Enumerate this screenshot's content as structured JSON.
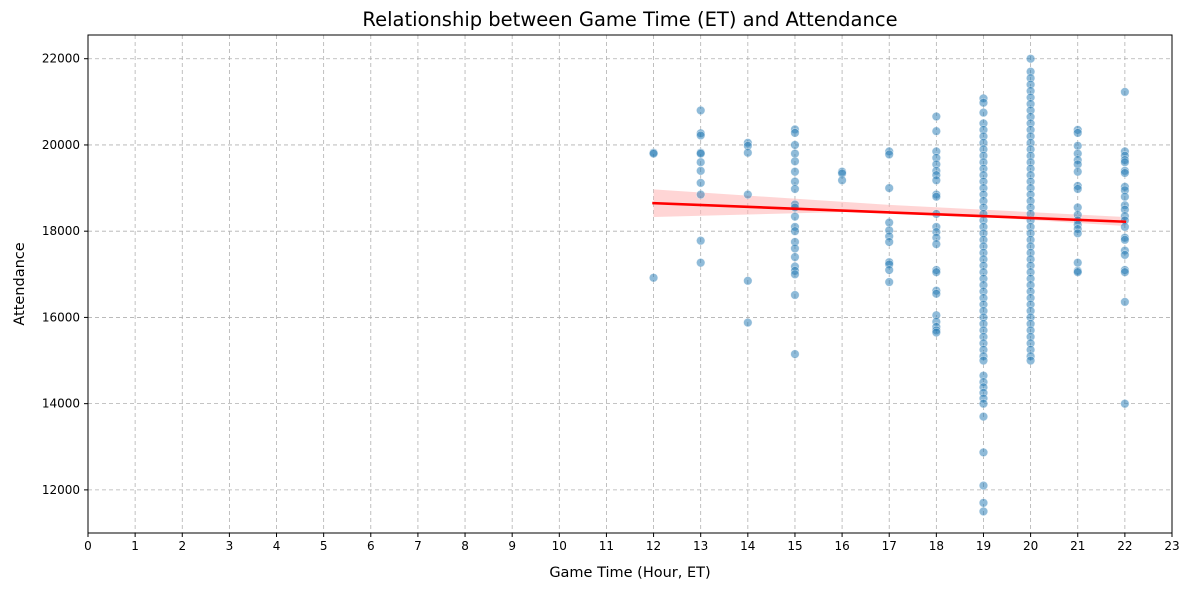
{
  "chart_data": {
    "type": "scatter",
    "title": "Relationship between Game Time (ET) and Attendance",
    "xlabel": "Game Time (Hour, ET)",
    "ylabel": "Attendance",
    "xlim": [
      0,
      23
    ],
    "ylim": [
      11000,
      22550
    ],
    "x_ticks": [
      0,
      1,
      2,
      3,
      4,
      5,
      6,
      7,
      8,
      9,
      10,
      11,
      12,
      13,
      14,
      15,
      16,
      17,
      18,
      19,
      20,
      21,
      22,
      23
    ],
    "y_ticks": [
      12000,
      14000,
      16000,
      18000,
      20000,
      22000
    ],
    "grid": true,
    "grid_style": "dashed",
    "colors": {
      "points": "#1f77b4",
      "regression": "#ff0000",
      "confidence_band": "#ffb3b3"
    },
    "regression": {
      "x": [
        12,
        22
      ],
      "y": [
        18650,
        18220
      ]
    },
    "confidence_band": {
      "x": [
        12,
        17,
        22
      ],
      "lower": [
        18330,
        18470,
        18120
      ],
      "upper": [
        18970,
        18610,
        18330
      ]
    },
    "points": [
      {
        "x": 12,
        "y": 19820
      },
      {
        "x": 12,
        "y": 19800
      },
      {
        "x": 12,
        "y": 16920
      },
      {
        "x": 13,
        "y": 20800
      },
      {
        "x": 13,
        "y": 20270
      },
      {
        "x": 13,
        "y": 20220
      },
      {
        "x": 13,
        "y": 19820
      },
      {
        "x": 13,
        "y": 19800
      },
      {
        "x": 13,
        "y": 19600
      },
      {
        "x": 13,
        "y": 19400
      },
      {
        "x": 13,
        "y": 19120
      },
      {
        "x": 13,
        "y": 18850
      },
      {
        "x": 13,
        "y": 17780
      },
      {
        "x": 13,
        "y": 17270
      },
      {
        "x": 14,
        "y": 20050
      },
      {
        "x": 14,
        "y": 19980
      },
      {
        "x": 14,
        "y": 19820
      },
      {
        "x": 14,
        "y": 18850
      },
      {
        "x": 14,
        "y": 16850
      },
      {
        "x": 14,
        "y": 15880
      },
      {
        "x": 15,
        "y": 20360
      },
      {
        "x": 15,
        "y": 20280
      },
      {
        "x": 15,
        "y": 20000
      },
      {
        "x": 15,
        "y": 19800
      },
      {
        "x": 15,
        "y": 19620
      },
      {
        "x": 15,
        "y": 19380
      },
      {
        "x": 15,
        "y": 19150
      },
      {
        "x": 15,
        "y": 18980
      },
      {
        "x": 15,
        "y": 18620
      },
      {
        "x": 15,
        "y": 18550
      },
      {
        "x": 15,
        "y": 18340
      },
      {
        "x": 15,
        "y": 18100
      },
      {
        "x": 15,
        "y": 18000
      },
      {
        "x": 15,
        "y": 17750
      },
      {
        "x": 15,
        "y": 17600
      },
      {
        "x": 15,
        "y": 17400
      },
      {
        "x": 15,
        "y": 17180
      },
      {
        "x": 15,
        "y": 17080
      },
      {
        "x": 15,
        "y": 17000
      },
      {
        "x": 15,
        "y": 16520
      },
      {
        "x": 15,
        "y": 15150
      },
      {
        "x": 16,
        "y": 19380
      },
      {
        "x": 16,
        "y": 19340
      },
      {
        "x": 16,
        "y": 19180
      },
      {
        "x": 17,
        "y": 19850
      },
      {
        "x": 17,
        "y": 19780
      },
      {
        "x": 17,
        "y": 19000
      },
      {
        "x": 17,
        "y": 18200
      },
      {
        "x": 17,
        "y": 18020
      },
      {
        "x": 17,
        "y": 17880
      },
      {
        "x": 17,
        "y": 17750
      },
      {
        "x": 17,
        "y": 17280
      },
      {
        "x": 17,
        "y": 17230
      },
      {
        "x": 17,
        "y": 17100
      },
      {
        "x": 17,
        "y": 16820
      },
      {
        "x": 18,
        "y": 20660
      },
      {
        "x": 18,
        "y": 20320
      },
      {
        "x": 18,
        "y": 19850
      },
      {
        "x": 18,
        "y": 19700
      },
      {
        "x": 18,
        "y": 19550
      },
      {
        "x": 18,
        "y": 19400
      },
      {
        "x": 18,
        "y": 19300
      },
      {
        "x": 18,
        "y": 19180
      },
      {
        "x": 18,
        "y": 18850
      },
      {
        "x": 18,
        "y": 18800
      },
      {
        "x": 18,
        "y": 18400
      },
      {
        "x": 18,
        "y": 18100
      },
      {
        "x": 18,
        "y": 17980
      },
      {
        "x": 18,
        "y": 17850
      },
      {
        "x": 18,
        "y": 17700
      },
      {
        "x": 18,
        "y": 17100
      },
      {
        "x": 18,
        "y": 17050
      },
      {
        "x": 18,
        "y": 16620
      },
      {
        "x": 18,
        "y": 16550
      },
      {
        "x": 18,
        "y": 16050
      },
      {
        "x": 18,
        "y": 15900
      },
      {
        "x": 18,
        "y": 15780
      },
      {
        "x": 18,
        "y": 15700
      },
      {
        "x": 18,
        "y": 15650
      },
      {
        "x": 19,
        "y": 21080
      },
      {
        "x": 19,
        "y": 20980
      },
      {
        "x": 19,
        "y": 20750
      },
      {
        "x": 19,
        "y": 20500
      },
      {
        "x": 19,
        "y": 20350
      },
      {
        "x": 19,
        "y": 20200
      },
      {
        "x": 19,
        "y": 20050
      },
      {
        "x": 19,
        "y": 19900
      },
      {
        "x": 19,
        "y": 19750
      },
      {
        "x": 19,
        "y": 19600
      },
      {
        "x": 19,
        "y": 19450
      },
      {
        "x": 19,
        "y": 19300
      },
      {
        "x": 19,
        "y": 19150
      },
      {
        "x": 19,
        "y": 19000
      },
      {
        "x": 19,
        "y": 18850
      },
      {
        "x": 19,
        "y": 18700
      },
      {
        "x": 19,
        "y": 18550
      },
      {
        "x": 19,
        "y": 18400
      },
      {
        "x": 19,
        "y": 18250
      },
      {
        "x": 19,
        "y": 18100
      },
      {
        "x": 19,
        "y": 17950
      },
      {
        "x": 19,
        "y": 17800
      },
      {
        "x": 19,
        "y": 17650
      },
      {
        "x": 19,
        "y": 17500
      },
      {
        "x": 19,
        "y": 17350
      },
      {
        "x": 19,
        "y": 17200
      },
      {
        "x": 19,
        "y": 17050
      },
      {
        "x": 19,
        "y": 16900
      },
      {
        "x": 19,
        "y": 16750
      },
      {
        "x": 19,
        "y": 16600
      },
      {
        "x": 19,
        "y": 16450
      },
      {
        "x": 19,
        "y": 16300
      },
      {
        "x": 19,
        "y": 16150
      },
      {
        "x": 19,
        "y": 16000
      },
      {
        "x": 19,
        "y": 15850
      },
      {
        "x": 19,
        "y": 15700
      },
      {
        "x": 19,
        "y": 15550
      },
      {
        "x": 19,
        "y": 15400
      },
      {
        "x": 19,
        "y": 15250
      },
      {
        "x": 19,
        "y": 15100
      },
      {
        "x": 19,
        "y": 15000
      },
      {
        "x": 19,
        "y": 14650
      },
      {
        "x": 19,
        "y": 14500
      },
      {
        "x": 19,
        "y": 14380
      },
      {
        "x": 19,
        "y": 14250
      },
      {
        "x": 19,
        "y": 14120
      },
      {
        "x": 19,
        "y": 14000
      },
      {
        "x": 19,
        "y": 13700
      },
      {
        "x": 19,
        "y": 12870
      },
      {
        "x": 19,
        "y": 12100
      },
      {
        "x": 19,
        "y": 11700
      },
      {
        "x": 19,
        "y": 11500
      },
      {
        "x": 20,
        "y": 22000
      },
      {
        "x": 20,
        "y": 21700
      },
      {
        "x": 20,
        "y": 21550
      },
      {
        "x": 20,
        "y": 21400
      },
      {
        "x": 20,
        "y": 21250
      },
      {
        "x": 20,
        "y": 21100
      },
      {
        "x": 20,
        "y": 20950
      },
      {
        "x": 20,
        "y": 20800
      },
      {
        "x": 20,
        "y": 20650
      },
      {
        "x": 20,
        "y": 20500
      },
      {
        "x": 20,
        "y": 20350
      },
      {
        "x": 20,
        "y": 20200
      },
      {
        "x": 20,
        "y": 20050
      },
      {
        "x": 20,
        "y": 19900
      },
      {
        "x": 20,
        "y": 19750
      },
      {
        "x": 20,
        "y": 19600
      },
      {
        "x": 20,
        "y": 19450
      },
      {
        "x": 20,
        "y": 19300
      },
      {
        "x": 20,
        "y": 19150
      },
      {
        "x": 20,
        "y": 19000
      },
      {
        "x": 20,
        "y": 18850
      },
      {
        "x": 20,
        "y": 18700
      },
      {
        "x": 20,
        "y": 18550
      },
      {
        "x": 20,
        "y": 18400
      },
      {
        "x": 20,
        "y": 18250
      },
      {
        "x": 20,
        "y": 18100
      },
      {
        "x": 20,
        "y": 17950
      },
      {
        "x": 20,
        "y": 17800
      },
      {
        "x": 20,
        "y": 17650
      },
      {
        "x": 20,
        "y": 17500
      },
      {
        "x": 20,
        "y": 17350
      },
      {
        "x": 20,
        "y": 17200
      },
      {
        "x": 20,
        "y": 17050
      },
      {
        "x": 20,
        "y": 16900
      },
      {
        "x": 20,
        "y": 16750
      },
      {
        "x": 20,
        "y": 16600
      },
      {
        "x": 20,
        "y": 16450
      },
      {
        "x": 20,
        "y": 16300
      },
      {
        "x": 20,
        "y": 16150
      },
      {
        "x": 20,
        "y": 16000
      },
      {
        "x": 20,
        "y": 15850
      },
      {
        "x": 20,
        "y": 15700
      },
      {
        "x": 20,
        "y": 15550
      },
      {
        "x": 20,
        "y": 15400
      },
      {
        "x": 20,
        "y": 15250
      },
      {
        "x": 20,
        "y": 15100
      },
      {
        "x": 20,
        "y": 15000
      },
      {
        "x": 21,
        "y": 20350
      },
      {
        "x": 21,
        "y": 20280
      },
      {
        "x": 21,
        "y": 19980
      },
      {
        "x": 21,
        "y": 19800
      },
      {
        "x": 21,
        "y": 19650
      },
      {
        "x": 21,
        "y": 19550
      },
      {
        "x": 21,
        "y": 19380
      },
      {
        "x": 21,
        "y": 19050
      },
      {
        "x": 21,
        "y": 18980
      },
      {
        "x": 21,
        "y": 18550
      },
      {
        "x": 21,
        "y": 18380
      },
      {
        "x": 21,
        "y": 18250
      },
      {
        "x": 21,
        "y": 18150
      },
      {
        "x": 21,
        "y": 18050
      },
      {
        "x": 21,
        "y": 17950
      },
      {
        "x": 21,
        "y": 17270
      },
      {
        "x": 21,
        "y": 17080
      },
      {
        "x": 21,
        "y": 17050
      },
      {
        "x": 22,
        "y": 21230
      },
      {
        "x": 22,
        "y": 19850
      },
      {
        "x": 22,
        "y": 19750
      },
      {
        "x": 22,
        "y": 19650
      },
      {
        "x": 22,
        "y": 19600
      },
      {
        "x": 22,
        "y": 19400
      },
      {
        "x": 22,
        "y": 19350
      },
      {
        "x": 22,
        "y": 19030
      },
      {
        "x": 22,
        "y": 18950
      },
      {
        "x": 22,
        "y": 18800
      },
      {
        "x": 22,
        "y": 18600
      },
      {
        "x": 22,
        "y": 18500
      },
      {
        "x": 22,
        "y": 18350
      },
      {
        "x": 22,
        "y": 18250
      },
      {
        "x": 22,
        "y": 18100
      },
      {
        "x": 22,
        "y": 17850
      },
      {
        "x": 22,
        "y": 17800
      },
      {
        "x": 22,
        "y": 17550
      },
      {
        "x": 22,
        "y": 17450
      },
      {
        "x": 22,
        "y": 17100
      },
      {
        "x": 22,
        "y": 17050
      },
      {
        "x": 22,
        "y": 16360
      },
      {
        "x": 22,
        "y": 14000
      }
    ]
  }
}
